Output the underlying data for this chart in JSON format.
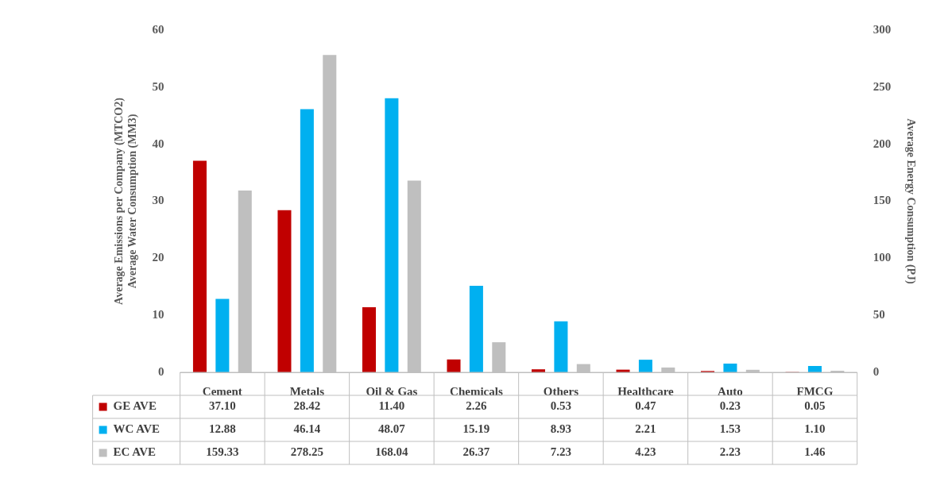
{
  "chart_data": {
    "type": "bar",
    "categories": [
      "Cement",
      "Metals",
      "Oil & Gas",
      "Chemicals",
      "Others",
      "Healthcare",
      "Auto",
      "FMCG"
    ],
    "ylabel": "Average Emissions per Company (MTCO2)\nAverage Water Consumption (MM3)",
    "y2label": "Average Energy Consumption (PJ)",
    "legend": "bottom left",
    "ylim": [
      0,
      60
    ],
    "yticks": [
      0,
      10,
      20,
      30,
      40,
      50,
      60
    ],
    "y2lim": [
      0,
      300
    ],
    "y2ticks": [
      0,
      50,
      100,
      150,
      200,
      250,
      300
    ],
    "series": [
      {
        "name": "GE AVE",
        "color": "#c00000",
        "values": [
          37.1,
          28.42,
          11.4,
          2.26,
          0.53,
          0.47,
          0.23,
          0.05
        ],
        "value_labels": [
          "37.10",
          "28.42",
          "11.40",
          "2.26",
          "0.53",
          "0.47",
          "0.23",
          "0.05"
        ]
      },
      {
        "name": "WC AVE",
        "color": "#00b0f0",
        "values": [
          12.88,
          46.14,
          48.07,
          15.19,
          8.93,
          2.21,
          1.53,
          1.1
        ],
        "value_labels": [
          "12.88",
          "46.14",
          "48.07",
          "15.19",
          "8.93",
          "2.21",
          "1.53",
          "1.10"
        ]
      },
      {
        "name": "EC AVE",
        "color": "#bfbfbf",
        "axis": "y2",
        "values": [
          159.33,
          278.25,
          168.04,
          26.37,
          7.23,
          4.23,
          2.23,
          1.46
        ],
        "value_labels": [
          "159.33",
          "278.25",
          "168.04",
          "26.37",
          "7.23",
          "4.23",
          "2.23",
          "1.46"
        ]
      }
    ]
  }
}
